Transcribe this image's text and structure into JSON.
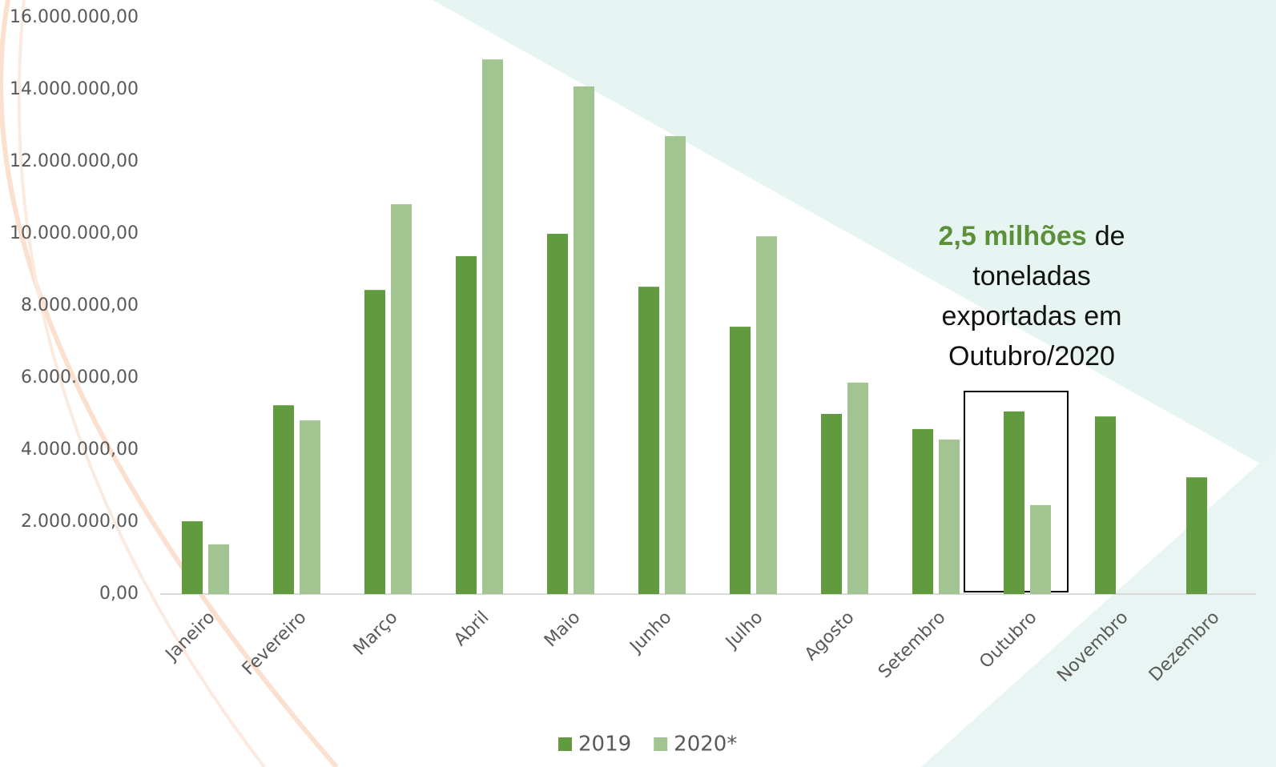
{
  "chart_data": {
    "type": "bar",
    "categories": [
      "Janeiro",
      "Fevereiro",
      "Março",
      "Abril",
      "Maio",
      "Junho",
      "Julho",
      "Agosto",
      "Setembro",
      "Outubro",
      "Novembro",
      "Dezembro"
    ],
    "series": [
      {
        "name": "2019",
        "color": "#629a3f",
        "values": [
          2020000,
          5240000,
          8440000,
          9380000,
          10000000,
          8530000,
          7420000,
          5000000,
          4580000,
          5070000,
          4930000,
          3240000
        ]
      },
      {
        "name": "2020*",
        "color": "#a2c490",
        "values": [
          1380000,
          4820000,
          10820000,
          14840000,
          14090000,
          12710000,
          9930000,
          5870000,
          4290000,
          2470000,
          null,
          null
        ]
      }
    ],
    "ylim": [
      0,
      16000000
    ],
    "yticks": [
      {
        "value": 0,
        "label": "0,00"
      },
      {
        "value": 2000000,
        "label": "2.000.000,00"
      },
      {
        "value": 4000000,
        "label": "4.000.000,00"
      },
      {
        "value": 6000000,
        "label": "6.000.000,00"
      },
      {
        "value": 8000000,
        "label": "8.000.000,00"
      },
      {
        "value": 10000000,
        "label": "10.000.000,00"
      },
      {
        "value": 12000000,
        "label": "12.000.000,00"
      },
      {
        "value": 14000000,
        "label": "14.000.000,00"
      },
      {
        "value": 16000000,
        "label": "16.000.000,00"
      }
    ],
    "grid": false,
    "legend": "bottom",
    "annotation": {
      "highlight": "2,5 milhões",
      "highlight_color": "#5b8f3a",
      "lines": [
        "de",
        "toneladas",
        "exportadas em",
        "Outubro/2020"
      ]
    }
  }
}
